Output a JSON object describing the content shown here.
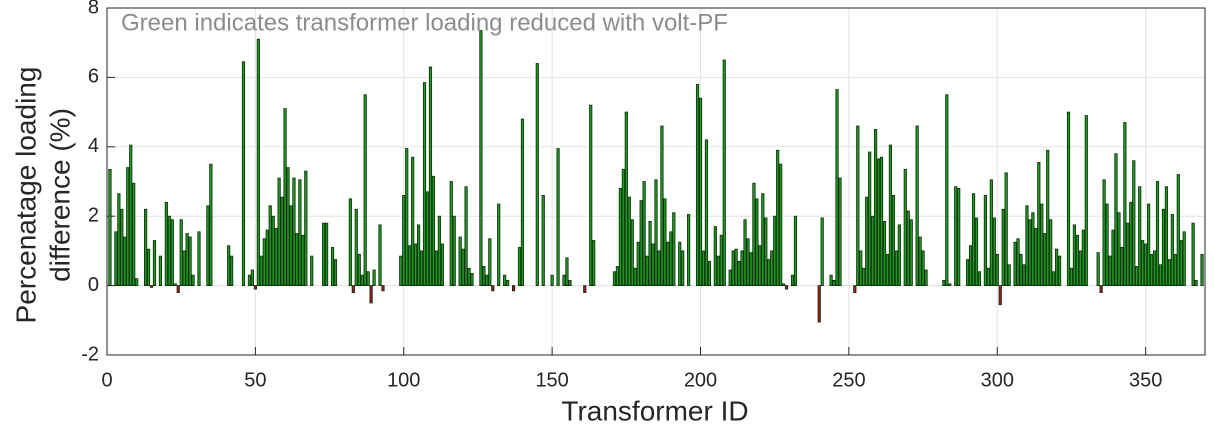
{
  "chart_data": {
    "type": "bar",
    "annotation": "Green indicates transformer loading reduced with volt-PF",
    "xlabel": "Transformer ID",
    "ylabel": [
      "Percenatage loading",
      "difference (%)"
    ],
    "xlim": [
      0,
      370
    ],
    "ylim": [
      -2,
      8
    ],
    "xticks": [
      0,
      50,
      100,
      150,
      200,
      250,
      300,
      350
    ],
    "yticks": [
      -2,
      0,
      2,
      4,
      6,
      8
    ],
    "grid": true,
    "color": "#1f9a1f",
    "negative_color": "#a3171b",
    "x": [
      1,
      2,
      3,
      4,
      5,
      6,
      7,
      8,
      9,
      10,
      11,
      12,
      13,
      14,
      15,
      16,
      17,
      18,
      19,
      20,
      21,
      22,
      23,
      24,
      25,
      26,
      27,
      28,
      29,
      30,
      31,
      32,
      33,
      34,
      35,
      36,
      37,
      38,
      39,
      40,
      41,
      42,
      43,
      44,
      45,
      46,
      47,
      48,
      49,
      50,
      51,
      52,
      53,
      54,
      55,
      56,
      57,
      58,
      59,
      60,
      61,
      62,
      63,
      64,
      65,
      66,
      67,
      68,
      69,
      70,
      71,
      72,
      73,
      74,
      75,
      76,
      77,
      78,
      79,
      80,
      81,
      82,
      83,
      84,
      85,
      86,
      87,
      88,
      89,
      90,
      91,
      92,
      93,
      94,
      95,
      96,
      97,
      98,
      99,
      100,
      101,
      102,
      103,
      104,
      105,
      106,
      107,
      108,
      109,
      110,
      111,
      112,
      113,
      114,
      115,
      116,
      117,
      118,
      119,
      120,
      121,
      122,
      123,
      124,
      125,
      126,
      127,
      128,
      129,
      130,
      131,
      132,
      133,
      134,
      135,
      136,
      137,
      138,
      139,
      140,
      141,
      142,
      143,
      144,
      145,
      146,
      147,
      148,
      149,
      150,
      151,
      152,
      153,
      154,
      155,
      156,
      157,
      158,
      159,
      160,
      161,
      162,
      163,
      164,
      165,
      166,
      167,
      168,
      169,
      170,
      171,
      172,
      173,
      174,
      175,
      176,
      177,
      178,
      179,
      180,
      181,
      182,
      183,
      184,
      185,
      186,
      187,
      188,
      189,
      190,
      191,
      192,
      193,
      194,
      195,
      196,
      197,
      198,
      199,
      200,
      201,
      202,
      203,
      204,
      205,
      206,
      207,
      208,
      209,
      210,
      211,
      212,
      213,
      214,
      215,
      216,
      217,
      218,
      219,
      220,
      221,
      222,
      223,
      224,
      225,
      226,
      227,
      228,
      229,
      230,
      231,
      232,
      233,
      234,
      235,
      236,
      237,
      238,
      239,
      240,
      241,
      242,
      243,
      244,
      245,
      246,
      247,
      248,
      249,
      250,
      251,
      252,
      253,
      254,
      255,
      256,
      257,
      258,
      259,
      260,
      261,
      262,
      263,
      264,
      265,
      266,
      267,
      268,
      269,
      270,
      271,
      272,
      273,
      274,
      275,
      276,
      277,
      278,
      279,
      280,
      281,
      282,
      283,
      284,
      285,
      286,
      287,
      288,
      289,
      290,
      291,
      292,
      293,
      294,
      295,
      296,
      297,
      298,
      299,
      300,
      301,
      302,
      303,
      304,
      305,
      306,
      307,
      308,
      309,
      310,
      311,
      312,
      313,
      314,
      315,
      316,
      317,
      318,
      319,
      320,
      321,
      322,
      323,
      324,
      325,
      326,
      327,
      328,
      329,
      330,
      331,
      332,
      333,
      334,
      335,
      336,
      337,
      338,
      339,
      340,
      341,
      342,
      343,
      344,
      345,
      346,
      347,
      348,
      349,
      350,
      351,
      352,
      353,
      354,
      355,
      356,
      357,
      358,
      359,
      360,
      361,
      362,
      363,
      364,
      365,
      366,
      367,
      368,
      369
    ],
    "values": [
      3.35,
      0,
      1.55,
      2.65,
      2.2,
      1.4,
      3.4,
      4.05,
      2.95,
      0.2,
      0,
      0,
      2.2,
      1.05,
      -0.05,
      1.3,
      0,
      0.85,
      0,
      2.4,
      2.0,
      1.9,
      0.05,
      -0.2,
      1.9,
      1.0,
      1.5,
      1.4,
      0.3,
      0,
      1.55,
      0,
      0,
      2.3,
      3.5,
      0,
      0,
      0,
      0,
      0,
      1.15,
      0.85,
      0,
      0,
      0,
      6.45,
      0,
      0.3,
      0.45,
      -0.1,
      7.1,
      0.85,
      1.35,
      1.6,
      2.3,
      2.0,
      1.65,
      3.1,
      2.55,
      5.1,
      3.4,
      2.3,
      3.1,
      1.5,
      3.05,
      1.45,
      3.3,
      0,
      0.85,
      0,
      0,
      0,
      1.8,
      1.8,
      0,
      1.1,
      0.75,
      0,
      0,
      0,
      0,
      2.5,
      -0.2,
      2.2,
      0.9,
      0.3,
      5.5,
      0.4,
      -0.5,
      0.45,
      0,
      1.75,
      -0.15,
      0,
      0,
      0,
      0,
      0,
      0.85,
      2.6,
      3.95,
      1.15,
      3.7,
      1.2,
      1.75,
      1.0,
      5.85,
      2.7,
      6.3,
      3.15,
      1.0,
      2.0,
      1.2,
      0,
      0,
      3.0,
      2.0,
      0,
      1.4,
      1.05,
      2.85,
      0.5,
      0.35,
      0,
      0,
      7.35,
      0.55,
      0.3,
      1.35,
      -0.15,
      0,
      2.35,
      0,
      0.3,
      0.15,
      0,
      -0.15,
      0,
      1.1,
      4.8,
      0,
      0,
      0,
      0,
      6.4,
      0,
      2.6,
      0,
      0,
      0.3,
      0,
      3.95,
      0,
      0.3,
      0.8,
      0.15,
      0,
      0,
      0,
      0,
      -0.2,
      0,
      5.2,
      1.3,
      0,
      0,
      0,
      0,
      0,
      0,
      0.4,
      0.55,
      2.8,
      3.35,
      5.0,
      2.55,
      1.9,
      0.5,
      1.25,
      2.45,
      3.0,
      0.85,
      1.85,
      1.2,
      3.05,
      1.0,
      4.6,
      2.5,
      1.25,
      1.55,
      2.1,
      0,
      1.25,
      1.0,
      0,
      2.05,
      0,
      0,
      5.8,
      5.4,
      1.0,
      4.2,
      0.7,
      0,
      1.7,
      0.85,
      1.45,
      6.5,
      0,
      0.45,
      1.0,
      1.05,
      0.7,
      1.0,
      1.9,
      1.35,
      0.95,
      2.95,
      2.5,
      1.15,
      2.65,
      1.95,
      0.75,
      1.0,
      2.0,
      3.9,
      3.5,
      0.05,
      -0.1,
      0,
      0.3,
      2.0,
      0,
      0,
      0,
      0,
      0,
      0,
      0,
      -1.05,
      1.95,
      0,
      0,
      0.3,
      0.15,
      5.65,
      3.1,
      0,
      0,
      0,
      0,
      -0.2,
      4.6,
      1.0,
      0.5,
      2.55,
      3.85,
      2.0,
      4.5,
      3.65,
      3.7,
      1.85,
      0.9,
      4.05,
      2.6,
      1.0,
      1.75,
      0,
      3.35,
      2.15,
      1.9,
      0,
      4.6,
      1.4,
      1.0,
      0.45,
      0,
      0,
      0,
      0,
      0,
      0.15,
      5.5,
      0.05,
      0,
      2.85,
      2.8,
      0,
      0,
      0.75,
      1.15,
      2.65,
      1.95,
      0.4,
      0,
      2.6,
      0.5,
      3.05,
      1.95,
      0.9,
      -0.55,
      2.2,
      3.25,
      0.6,
      0,
      1.25,
      1.35,
      0.9,
      0.6,
      2.3,
      1.9,
      2.1,
      1.65,
      3.55,
      2.35,
      1.5,
      3.9,
      1.9,
      0.4,
      1.05,
      0.85,
      0,
      0,
      5.0,
      0.5,
      1.75,
      1.45,
      1.0,
      1.6,
      4.9,
      0,
      0,
      0,
      0.95,
      -0.2,
      3.05,
      2.35,
      0.85,
      1.6,
      3.8,
      2.1,
      1.1,
      4.7,
      1.8,
      2.4,
      3.6,
      0.55,
      2.85,
      1.3,
      1.2,
      2.35,
      0.9,
      1.0,
      3.0,
      0.6,
      2.2,
      2.85,
      0.75,
      2.05,
      0.9,
      3.2,
      1.3,
      1.55,
      0,
      0,
      1.8,
      0.15,
      0,
      0.9
    ]
  }
}
